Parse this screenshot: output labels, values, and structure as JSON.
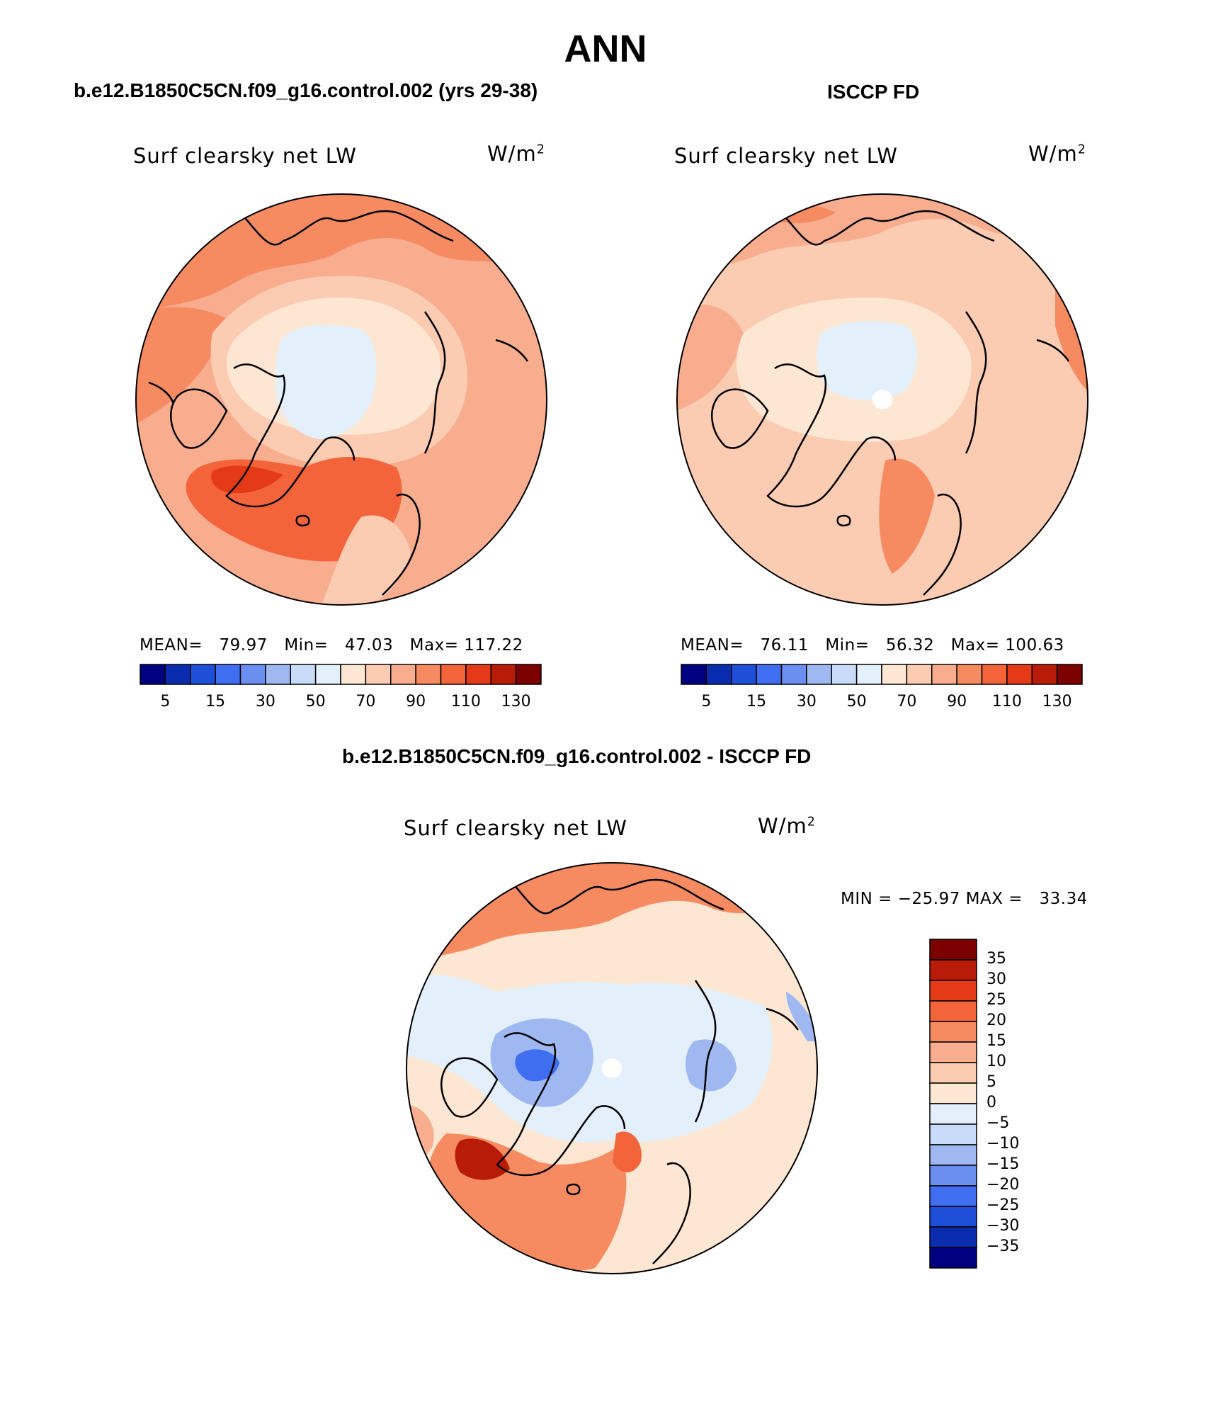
{
  "title": "ANN",
  "panels": [
    {
      "id": "model",
      "title": "b.e12.B1850C5CN.f09_g16.control.002 (yrs 29-38)",
      "variable": "Surf clearsky net LW",
      "units": "W/m",
      "units_exp": "2",
      "stats": {
        "mean_label": "MEAN=",
        "mean": "79.97",
        "min_label": "Min=",
        "min": "47.03",
        "max_label": "Max=",
        "max": "117.22"
      }
    },
    {
      "id": "obs",
      "title": "ISCCP FD",
      "variable": "Surf clearsky net LW",
      "units": "W/m",
      "units_exp": "2",
      "stats": {
        "mean_label": "MEAN=",
        "mean": "76.11",
        "min_label": "Min=",
        "min": "56.32",
        "max_label": "Max=",
        "max": "100.63"
      }
    },
    {
      "id": "diff",
      "title": "b.e12.B1850C5CN.f09_g16.control.002 - ISCCP FD",
      "variable": "Surf clearsky net LW",
      "units": "W/m",
      "units_exp": "2",
      "stats_text": "MIN = −25.97 MAX =   33.34"
    }
  ],
  "colorbar_horizontal": {
    "colors": [
      "#000080",
      "#0a2db0",
      "#1f4fd8",
      "#3f6ff0",
      "#6a8ff0",
      "#9fb8f2",
      "#c8dbf8",
      "#e3f0fb",
      "#fde7d3",
      "#fbcbb2",
      "#f8ad8f",
      "#f68b62",
      "#f3643a",
      "#e43a17",
      "#b81c08",
      "#7d0000"
    ],
    "tick_labels": [
      "5",
      "15",
      "30",
      "50",
      "70",
      "90",
      "110",
      "130"
    ]
  },
  "colorbar_vertical": {
    "colors": [
      "#7d0000",
      "#b81c08",
      "#e43a17",
      "#f3643a",
      "#f68b62",
      "#f8ad8f",
      "#fbcbb2",
      "#fde7d3",
      "#e3f0fb",
      "#c8dbf8",
      "#9fb8f2",
      "#6a8ff0",
      "#3f6ff0",
      "#1f4fd8",
      "#0a2db0",
      "#000080"
    ],
    "tick_labels": [
      "35",
      "30",
      "25",
      "20",
      "15",
      "10",
      "5",
      "0",
      "−5",
      "−10",
      "−15",
      "−20",
      "−25",
      "−30",
      "−35"
    ]
  }
}
